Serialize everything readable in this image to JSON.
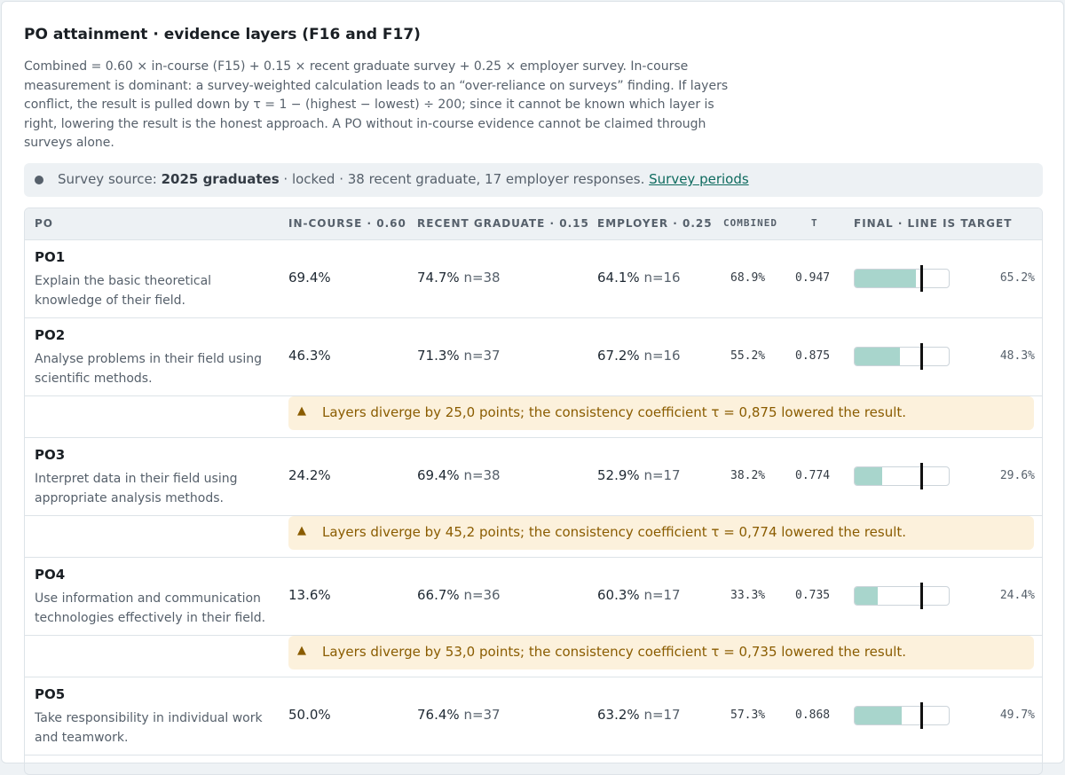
{
  "header": {
    "title": "PO attainment · evidence layers (F16 and F17)",
    "description": "Combined = 0.60 × in-course (F15) + 0.15 × recent graduate survey + 0.25 × employer survey. In-course measurement is dominant: a survey-weighted calculation leads to an “over-reliance on surveys” finding. If layers conflict, the result is pulled down by τ = 1 − (highest − lowest) ÷ 200; since it cannot be known which layer is right, lowering the result is the honest approach. A PO without in-course evidence cannot be claimed through surveys alone."
  },
  "banner": {
    "prefix": "Survey source: ",
    "source": "2025 graduates",
    "suffix": " · locked · 38 recent graduate, 17 employer responses. ",
    "link": "Survey periods"
  },
  "columns": {
    "po": "PO",
    "in_course": "IN-COURSE · 0.60",
    "recent_graduate": "RECENT GRADUATE · 0.15",
    "employer": "EMPLOYER · 0.25",
    "combined": "COMBINED",
    "tau": "T",
    "final": "FINAL · LINE IS TARGET"
  },
  "colors": {
    "bar_fill": "#a8d5cc",
    "warning_bg": "#fcf1dc",
    "warning_text": "#8a5c00",
    "link": "#0f6b5f"
  },
  "rows": [
    {
      "code": "PO1",
      "text": "Explain the basic theoretical knowledge of their field.",
      "in_course": "69.4%",
      "recent_graduate": "74.7%",
      "recent_n": "n=38",
      "employer": "64.1%",
      "employer_n": "n=16",
      "combined": "68.9%",
      "tau": "0.947",
      "final": "65.2%",
      "final_value": 65.2,
      "target_value": 70,
      "warning": ""
    },
    {
      "code": "PO2",
      "text": "Analyse problems in their field using scientific methods.",
      "in_course": "46.3%",
      "recent_graduate": "71.3%",
      "recent_n": "n=37",
      "employer": "67.2%",
      "employer_n": "n=16",
      "combined": "55.2%",
      "tau": "0.875",
      "final": "48.3%",
      "final_value": 48.3,
      "target_value": 70,
      "warning": "Layers diverge by 25,0 points; the consistency coefficient τ = 0,875 lowered the result."
    },
    {
      "code": "PO3",
      "text": "Interpret data in their field using appropriate analysis methods.",
      "in_course": "24.2%",
      "recent_graduate": "69.4%",
      "recent_n": "n=38",
      "employer": "52.9%",
      "employer_n": "n=17",
      "combined": "38.2%",
      "tau": "0.774",
      "final": "29.6%",
      "final_value": 29.6,
      "target_value": 70,
      "warning": "Layers diverge by 45,2 points; the consistency coefficient τ = 0,774 lowered the result."
    },
    {
      "code": "PO4",
      "text": "Use information and communication technologies effectively in their field.",
      "in_course": "13.6%",
      "recent_graduate": "66.7%",
      "recent_n": "n=36",
      "employer": "60.3%",
      "employer_n": "n=17",
      "combined": "33.3%",
      "tau": "0.735",
      "final": "24.4%",
      "final_value": 24.4,
      "target_value": 70,
      "warning": "Layers diverge by 53,0 points; the consistency coefficient τ = 0,735 lowered the result."
    },
    {
      "code": "PO5",
      "text": "Take responsibility in individual work and teamwork.",
      "in_course": "50.0%",
      "recent_graduate": "76.4%",
      "recent_n": "n=37",
      "employer": "63.2%",
      "employer_n": "n=17",
      "combined": "57.3%",
      "tau": "0.868",
      "final": "49.7%",
      "final_value": 49.7,
      "target_value": 70,
      "warning": ""
    }
  ]
}
